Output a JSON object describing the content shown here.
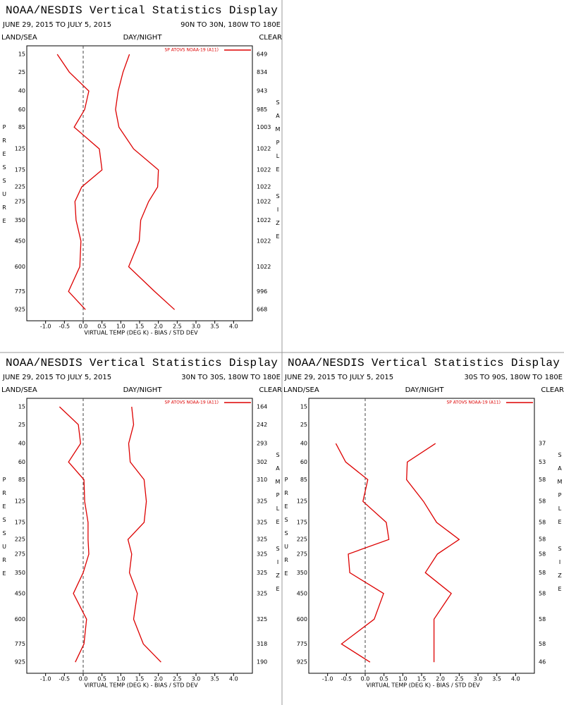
{
  "chart_data": [
    {
      "type": "line",
      "title": "NOAA/NESDIS Vertical Statistics Display",
      "subtitle": "JUNE 29, 2015 TO JULY 5, 2015",
      "region": "90N TO 30N, 180W TO 180E",
      "land_sea": "LAND/SEA",
      "day_night": "DAY/NIGHT",
      "clear": "CLEAR",
      "xlabel": "VIRTUAL TEMP (DEG K) - BIAS / STD DEV",
      "ylabel": "PRESSURE",
      "y2label": "SAMPLE SIZE",
      "xlim": [
        -1.5,
        4.5
      ],
      "xticks": [
        {
          "value": -1,
          "label": "-1.0"
        },
        {
          "value": -0.5,
          "label": "-0.5"
        },
        {
          "value": 0,
          "label": "0.0"
        },
        0.5,
        {
          "value": 1,
          "label": "1.0"
        },
        1.5,
        {
          "value": 2,
          "label": "2.0"
        },
        2.5,
        {
          "value": 3,
          "label": "3.0"
        },
        3.5,
        {
          "value": 4,
          "label": "4.0"
        }
      ],
      "ylim": [
        10,
        1000
      ],
      "yscale": "power",
      "y": [
        15,
        25,
        40,
        60,
        85,
        125,
        175,
        225,
        275,
        350,
        450,
        600,
        775,
        925
      ],
      "sample_size": [
        649,
        834,
        943,
        985,
        1003,
        1022,
        1022,
        1022,
        1022,
        1022,
        1022,
        1022,
        996,
        668
      ],
      "zero_line": true,
      "legend": "upper right",
      "series": [
        {
          "name": "SP ATOVS NOAA-19 (A11)",
          "color": "#dd0000",
          "bias": [
            -0.69,
            -0.37,
            0.15,
            0.04,
            -0.24,
            0.43,
            0.5,
            -0.04,
            -0.22,
            -0.19,
            -0.06,
            -0.09,
            -0.39,
            0.06
          ],
          "std_dev": [
            1.23,
            1.06,
            0.93,
            0.86,
            0.95,
            1.34,
            2.0,
            1.98,
            1.74,
            1.53,
            1.49,
            1.21,
            1.9,
            2.43
          ]
        }
      ]
    },
    {
      "type": "line",
      "title": "NOAA/NESDIS Vertical Statistics Display",
      "subtitle": "JUNE 29, 2015 TO JULY 5, 2015",
      "region": "30N TO 30S, 180W TO 180E",
      "land_sea": "LAND/SEA",
      "day_night": "DAY/NIGHT",
      "clear": "CLEAR",
      "xlabel": "VIRTUAL TEMP (DEG K) - BIAS / STD DEV",
      "ylabel": "PRESSURE",
      "y2label": "SAMPLE SIZE",
      "xlim": [
        -1.5,
        4.5
      ],
      "xticks": [
        {
          "value": -1,
          "label": "-1.0"
        },
        {
          "value": -0.5,
          "label": "-0.5"
        },
        {
          "value": 0,
          "label": "0.0"
        },
        0.5,
        {
          "value": 1,
          "label": "1.0"
        },
        1.5,
        {
          "value": 2,
          "label": "2.0"
        },
        2.5,
        {
          "value": 3,
          "label": "3.0"
        },
        3.5,
        {
          "value": 4,
          "label": "4.0"
        }
      ],
      "ylim": [
        10,
        1000
      ],
      "yscale": "power",
      "y": [
        15,
        25,
        40,
        60,
        85,
        125,
        175,
        225,
        275,
        350,
        450,
        600,
        775,
        925
      ],
      "sample_size": [
        164,
        242,
        293,
        302,
        310,
        325,
        325,
        325,
        325,
        325,
        325,
        325,
        318,
        190
      ],
      "zero_line": true,
      "legend": "upper right",
      "series": [
        {
          "name": "SP ATOVS NOAA-19 (A11)",
          "color": "#dd0000",
          "bias": [
            -0.63,
            -0.13,
            -0.07,
            -0.39,
            0.02,
            0.04,
            0.13,
            0.13,
            0.15,
            0.0,
            -0.26,
            0.09,
            0.02,
            -0.21
          ],
          "std_dev": [
            1.29,
            1.34,
            1.21,
            1.25,
            1.62,
            1.68,
            1.62,
            1.19,
            1.29,
            1.23,
            1.44,
            1.34,
            1.6,
            2.07
          ]
        }
      ]
    },
    {
      "type": "line",
      "title": "NOAA/NESDIS Vertical Statistics Display",
      "subtitle": "JUNE 29, 2015 TO JULY 5, 2015",
      "region": "30S TO 90S, 180W TO 180E",
      "land_sea": "LAND/SEA",
      "day_night": "DAY/NIGHT",
      "clear": "CLEAR",
      "xlabel": "VIRTUAL TEMP (DEG K) - BIAS / STD DEV",
      "ylabel": "PRESSURE",
      "y2label": "SAMPLE SIZE",
      "xlim": [
        -1.5,
        4.5
      ],
      "xticks": [
        {
          "value": -1,
          "label": "-1.0"
        },
        {
          "value": -0.5,
          "label": "-0.5"
        },
        {
          "value": 0,
          "label": "0.0"
        },
        0.5,
        {
          "value": 1,
          "label": "1.0"
        },
        1.5,
        {
          "value": 2,
          "label": "2.0"
        },
        2.5,
        {
          "value": 3,
          "label": "3.0"
        },
        3.5,
        {
          "value": 4,
          "label": "4.0"
        }
      ],
      "ylim": [
        10,
        1000
      ],
      "yscale": "power",
      "y": [
        15,
        25,
        40,
        60,
        85,
        125,
        175,
        225,
        275,
        350,
        450,
        600,
        775,
        925
      ],
      "sample_size": [
        null,
        null,
        37,
        53,
        58,
        58,
        58,
        58,
        58,
        58,
        58,
        58,
        58,
        46
      ],
      "zero_line": true,
      "legend": "upper right",
      "series": [
        {
          "name": "SP ATOVS NOAA-19 (A11)",
          "color": "#dd0000",
          "bias": [
            null,
            null,
            -0.78,
            -0.52,
            0.07,
            -0.06,
            0.56,
            0.63,
            -0.45,
            -0.41,
            0.49,
            0.24,
            -0.63,
            0.13
          ],
          "std_dev": [
            null,
            null,
            1.87,
            1.12,
            1.1,
            1.55,
            1.9,
            2.5,
            1.92,
            1.6,
            2.29,
            1.83,
            1.83,
            1.83
          ]
        }
      ]
    }
  ]
}
